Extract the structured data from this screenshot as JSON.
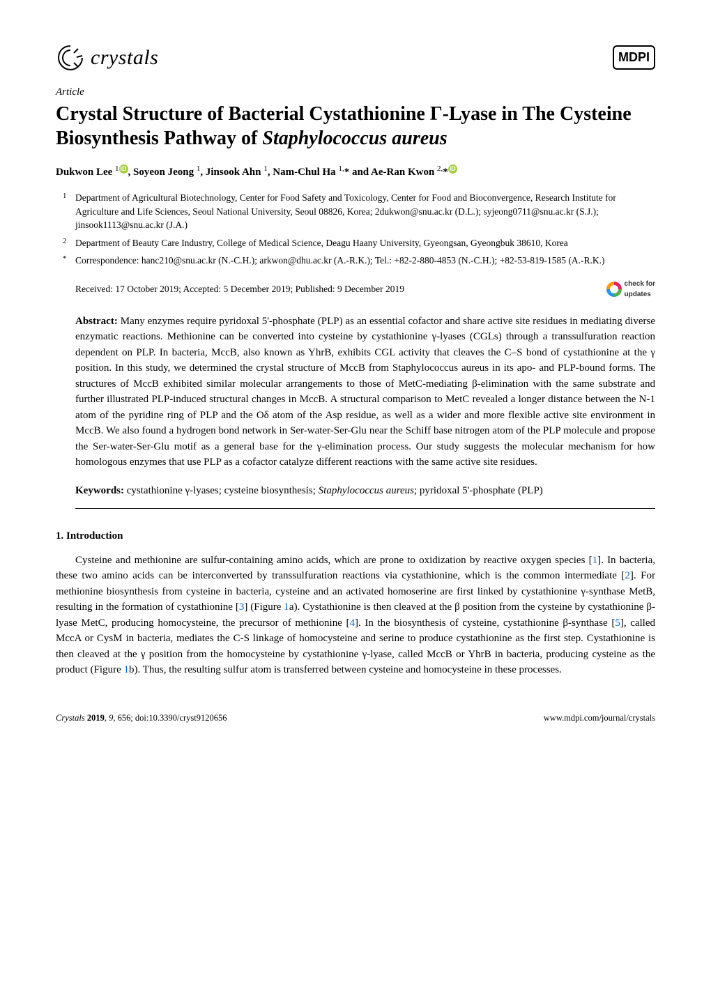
{
  "header": {
    "journal_name": "crystals",
    "publisher_logo": "MDPI",
    "logo_color": "#000000"
  },
  "article": {
    "type": "Article",
    "title_pre": "Crystal Structure of Bacterial Cystathionine Γ-Lyase in The Cysteine Biosynthesis Pathway of ",
    "title_species": "Staphylococcus aureus",
    "authors_html": "Dukwon Lee <sup>1</sup><span class=\"orcid\">iD</span>, Soyeon Jeong <sup>1</sup>, Jinsook Ahn <sup>1</sup>, Nam-Chul Ha <sup>1,</sup>* and Ae-Ran Kwon <sup>2,</sup>*<span class=\"orcid\">iD</span>"
  },
  "affiliations": [
    {
      "marker": "1",
      "text": "Department of Agricultural Biotechnology, Center for Food Safety and Toxicology, Center for Food and Bioconvergence, Research Institute for Agriculture and Life Sciences, Seoul National University, Seoul 08826, Korea; 2dukwon@snu.ac.kr (D.L.); syjeong0711@snu.ac.kr (S.J.); jinsook1113@snu.ac.kr (J.A.)"
    },
    {
      "marker": "2",
      "text": "Department of Beauty Care Industry, College of Medical Science, Deagu Haany University, Gyeongsan, Gyeongbuk 38610, Korea"
    },
    {
      "marker": "*",
      "text": "Correspondence: hanc210@snu.ac.kr (N.-C.H.); arkwon@dhu.ac.kr (A.-R.K.); Tel.: +82-2-880-4853 (N.-C.H.); +82-53-819-1585 (A.-R.K.)"
    }
  ],
  "dates": "Received: 17 October 2019; Accepted: 5 December 2019; Published: 9 December 2019",
  "check_updates": {
    "line1": "check for",
    "line2": "updates"
  },
  "abstract": {
    "label": "Abstract:",
    "text": " Many enzymes require pyridoxal 5'-phosphate (PLP) as an essential cofactor and share active site residues in mediating diverse enzymatic reactions. Methionine can be converted into cysteine by cystathionine γ-lyases (CGLs) through a transsulfuration reaction dependent on PLP. In bacteria, MccB, also known as YhrB, exhibits CGL activity that cleaves the C–S bond of cystathionine at the γ position. In this study, we determined the crystal structure of MccB from Staphylococcus aureus in its apo- and PLP-bound forms. The structures of MccB exhibited similar molecular arrangements to those of MetC-mediating β-elimination with the same substrate and further illustrated PLP-induced structural changes in MccB. A structural comparison to MetC revealed a longer distance between the N-1 atom of the pyridine ring of PLP and the Oδ atom of the Asp residue, as well as a wider and more flexible active site environment in MccB. We also found a hydrogen bond network in Ser-water-Ser-Glu near the Schiff base nitrogen atom of the PLP molecule and propose the Ser-water-Ser-Glu motif as a general base for the γ-elimination process. Our study suggests the molecular mechanism for how homologous enzymes that use PLP as a cofactor catalyze different reactions with the same active site residues."
  },
  "keywords": {
    "label": "Keywords:",
    "text": " cystathionine γ-lyases; cysteine biosynthesis; Staphylococcus aureus; pyridoxal 5'-phosphate (PLP)"
  },
  "section1": {
    "heading": "1. Introduction",
    "para": "Cysteine and methionine are sulfur-containing amino acids, which are prone to oxidization by reactive oxygen species [1]. In bacteria, these two amino acids can be interconverted by transsulfuration reactions via cystathionine, which is the common intermediate [2]. For methionine biosynthesis from cysteine in bacteria, cysteine and an activated homoserine are first linked by cystathionine γ-synthase MetB, resulting in the formation of cystathionine [3] (Figure 1a). Cystathionine is then cleaved at the β position from the cysteine by cystathionine β-lyase MetC, producing homocysteine, the precursor of methionine [4]. In the biosynthesis of cysteine, cystathionine β-synthase [5], called MccA or CysM in bacteria, mediates the C-S linkage of homocysteine and serine to produce cystathionine as the first step. Cystathionine is then cleaved at the γ position from the homocysteine by cystathionine γ-lyase, called MccB or YhrB in bacteria, producing cysteine as the product (Figure 1b). Thus, the resulting sulfur atom is transferred between cysteine and homocysteine in these processes."
  },
  "footer": {
    "left": "Crystals 2019, 9, 656; doi:10.3390/cryst9120656",
    "right": "www.mdpi.com/journal/crystals"
  },
  "colors": {
    "link": "#0066cc",
    "orcid": "#a6ce39",
    "text": "#000000",
    "bg": "#ffffff"
  }
}
